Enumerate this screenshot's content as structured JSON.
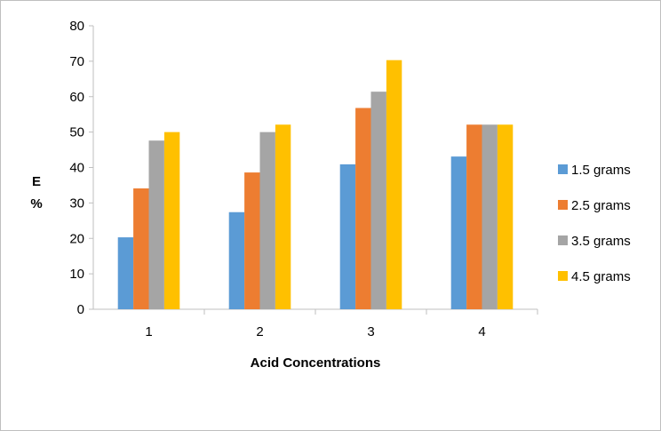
{
  "chart_data": {
    "type": "bar",
    "categories": [
      "1",
      "2",
      "3",
      "4"
    ],
    "series": [
      {
        "name": "1.5 grams",
        "color": "#5b9bd5",
        "values": [
          20.3,
          27.4,
          40.9,
          43.1
        ]
      },
      {
        "name": "2.5 grams",
        "color": "#ed7d31",
        "values": [
          34.1,
          38.6,
          56.8,
          52.1
        ]
      },
      {
        "name": "3.5 grams",
        "color": "#a5a5a5",
        "values": [
          47.6,
          50.0,
          61.4,
          52.1
        ]
      },
      {
        "name": "4.5 grams",
        "color": "#ffc000",
        "values": [
          50.0,
          52.1,
          70.3,
          52.1
        ]
      }
    ],
    "xlabel": "Acid Concentrations",
    "ylabel_line1": "E",
    "ylabel_line2": "%",
    "ylim": [
      0,
      80
    ],
    "yticks": [
      "0",
      "10",
      "20",
      "30",
      "40",
      "50",
      "60",
      "70",
      "80"
    ],
    "grid": false,
    "legend_position": "right"
  }
}
